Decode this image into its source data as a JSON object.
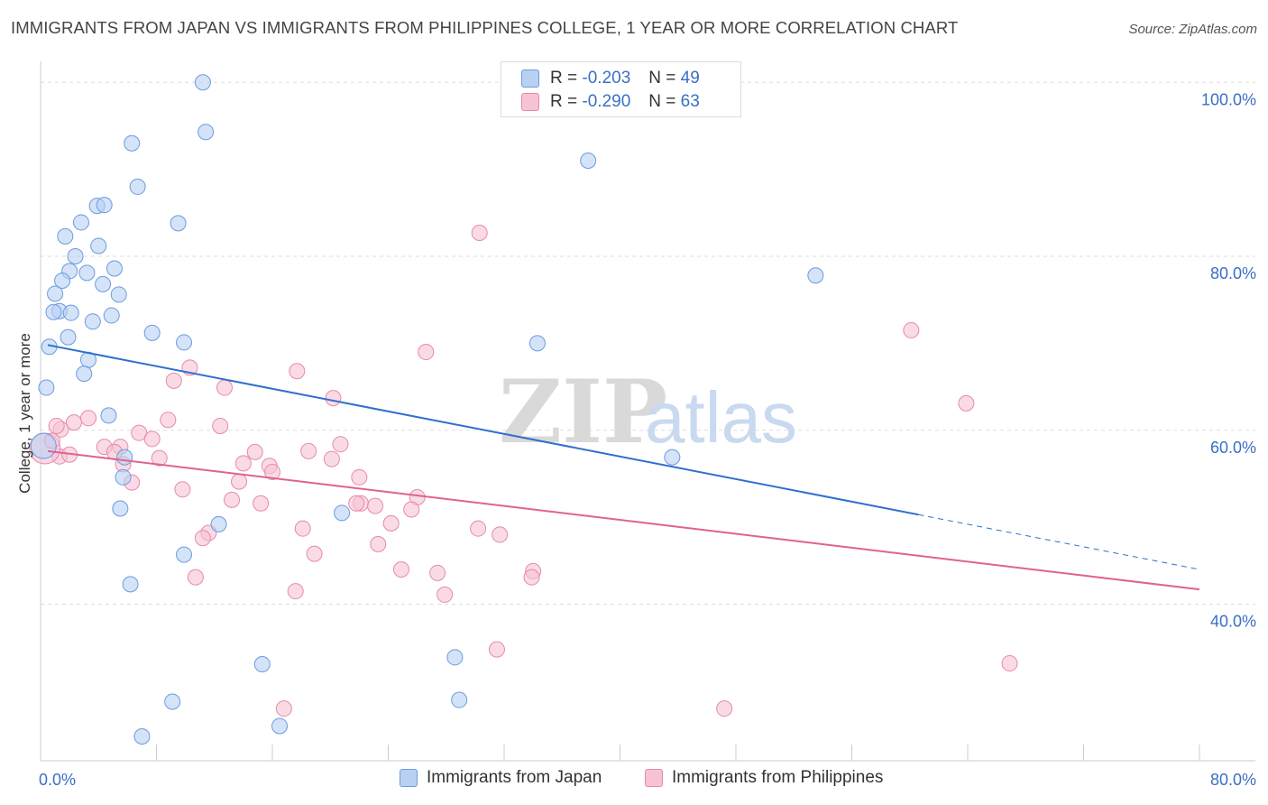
{
  "header": {
    "title": "IMMIGRANTS FROM JAPAN VS IMMIGRANTS FROM PHILIPPINES COLLEGE, 1 YEAR OR MORE CORRELATION CHART",
    "source": "Source: ZipAtlas.com"
  },
  "watermark": {
    "part1": "ZIP",
    "part2": "atlas"
  },
  "stats": {
    "japan": {
      "r_label": "R =",
      "r_value": "-0.203",
      "n_label": "N =",
      "n_value": "49"
    },
    "philippines": {
      "r_label": "R =",
      "r_value": "-0.290",
      "n_label": "N =",
      "n_value": "63"
    }
  },
  "legend": {
    "japan": "Immigrants from Japan",
    "philippines": "Immigrants from Philippines"
  },
  "colors": {
    "japan_fill": "#b8d1f2",
    "japan_stroke": "#6b9be0",
    "japan_line": "#2f6fcf",
    "philippines_fill": "#f7c3d3",
    "philippines_stroke": "#e68aa8",
    "philippines_line": "#e0628f",
    "tick_label": "#3a6fc4",
    "grid": "#dddddd"
  },
  "chart_data": {
    "type": "scatter",
    "ylabel": "College, 1 year or more",
    "xlim": [
      0,
      80
    ],
    "ylim": [
      22,
      102
    ],
    "x_tick_labels": [
      "0.0%",
      "80.0%"
    ],
    "y_ticks": [
      40,
      60,
      80,
      100
    ],
    "y_tick_labels": [
      "40.0%",
      "60.0%",
      "80.0%",
      "100.0%"
    ],
    "grid": "horizontal dashed",
    "legend_placement": "bottom-center",
    "series": [
      {
        "name": "Immigrants from Japan",
        "points": [
          [
            11.2,
            100.0
          ],
          [
            11.4,
            94.3
          ],
          [
            6.3,
            93.0
          ],
          [
            37.8,
            91.0
          ],
          [
            6.7,
            88.0
          ],
          [
            3.9,
            85.8
          ],
          [
            4.4,
            85.9
          ],
          [
            9.5,
            83.8
          ],
          [
            2.8,
            83.9
          ],
          [
            1.7,
            82.3
          ],
          [
            4.0,
            81.2
          ],
          [
            2.4,
            80.0
          ],
          [
            5.1,
            78.6
          ],
          [
            3.2,
            78.1
          ],
          [
            2.0,
            78.3
          ],
          [
            53.5,
            77.8
          ],
          [
            1.5,
            77.2
          ],
          [
            4.3,
            76.8
          ],
          [
            1.0,
            75.7
          ],
          [
            5.4,
            75.6
          ],
          [
            1.3,
            73.7
          ],
          [
            2.1,
            73.5
          ],
          [
            0.9,
            73.6
          ],
          [
            4.9,
            73.2
          ],
          [
            3.6,
            72.5
          ],
          [
            7.7,
            71.2
          ],
          [
            1.9,
            70.7
          ],
          [
            9.9,
            70.1
          ],
          [
            34.3,
            70.0
          ],
          [
            0.6,
            69.6
          ],
          [
            3.3,
            68.1
          ],
          [
            3.0,
            66.5
          ],
          [
            0.4,
            64.9
          ],
          [
            4.7,
            61.7
          ],
          [
            5.8,
            56.9
          ],
          [
            43.6,
            56.9
          ],
          [
            5.7,
            54.6
          ],
          [
            5.5,
            51.0
          ],
          [
            12.3,
            49.2
          ],
          [
            20.8,
            50.5
          ],
          [
            9.9,
            45.7
          ],
          [
            6.2,
            42.3
          ],
          [
            15.3,
            33.1
          ],
          [
            28.6,
            33.9
          ],
          [
            9.1,
            28.8
          ],
          [
            28.9,
            29.0
          ],
          [
            16.5,
            26.0
          ],
          [
            7.0,
            24.8
          ],
          [
            0.2,
            58.2
          ]
        ],
        "trend": {
          "x": [
            0.5,
            60.6
          ],
          "y": [
            69.8,
            50.3
          ]
        },
        "trend_dashed": {
          "x": [
            60.6,
            80.0
          ],
          "y": [
            50.3,
            44.0
          ]
        }
      },
      {
        "name": "Immigrants from Philippines",
        "points": [
          [
            30.3,
            82.7
          ],
          [
            60.1,
            71.5
          ],
          [
            26.6,
            69.0
          ],
          [
            17.7,
            66.8
          ],
          [
            10.3,
            67.2
          ],
          [
            9.2,
            65.7
          ],
          [
            12.7,
            64.9
          ],
          [
            20.2,
            63.7
          ],
          [
            63.9,
            63.1
          ],
          [
            3.3,
            61.4
          ],
          [
            8.8,
            61.2
          ],
          [
            2.3,
            60.9
          ],
          [
            12.4,
            60.5
          ],
          [
            1.4,
            60.1
          ],
          [
            6.8,
            59.7
          ],
          [
            7.7,
            59.0
          ],
          [
            20.7,
            58.4
          ],
          [
            5.5,
            58.1
          ],
          [
            4.4,
            58.1
          ],
          [
            5.1,
            57.5
          ],
          [
            14.8,
            57.5
          ],
          [
            18.5,
            57.6
          ],
          [
            1.3,
            57.0
          ],
          [
            8.2,
            56.8
          ],
          [
            20.1,
            56.7
          ],
          [
            14.0,
            56.2
          ],
          [
            15.8,
            55.9
          ],
          [
            5.7,
            56.1
          ],
          [
            16.0,
            55.2
          ],
          [
            22.0,
            54.6
          ],
          [
            13.7,
            54.1
          ],
          [
            6.3,
            54.0
          ],
          [
            9.8,
            53.2
          ],
          [
            26.0,
            52.3
          ],
          [
            13.2,
            52.0
          ],
          [
            15.2,
            51.6
          ],
          [
            22.1,
            51.6
          ],
          [
            21.8,
            51.6
          ],
          [
            23.1,
            51.3
          ],
          [
            25.6,
            50.9
          ],
          [
            24.2,
            49.3
          ],
          [
            30.2,
            48.7
          ],
          [
            18.1,
            48.7
          ],
          [
            11.6,
            48.2
          ],
          [
            31.7,
            48.0
          ],
          [
            11.2,
            47.6
          ],
          [
            23.3,
            46.9
          ],
          [
            18.9,
            45.8
          ],
          [
            24.9,
            44.0
          ],
          [
            34.0,
            43.8
          ],
          [
            27.4,
            43.6
          ],
          [
            10.7,
            43.1
          ],
          [
            33.9,
            43.1
          ],
          [
            17.6,
            41.5
          ],
          [
            27.9,
            41.1
          ],
          [
            31.5,
            34.8
          ],
          [
            66.9,
            33.2
          ],
          [
            16.8,
            28.0
          ],
          [
            47.2,
            28.0
          ],
          [
            0.3,
            57.9
          ],
          [
            0.8,
            58.8
          ],
          [
            1.1,
            60.5
          ],
          [
            2.0,
            57.2
          ]
        ],
        "trend": {
          "x": [
            0.5,
            80.0
          ],
          "y": [
            57.6,
            41.7
          ]
        }
      }
    ]
  }
}
